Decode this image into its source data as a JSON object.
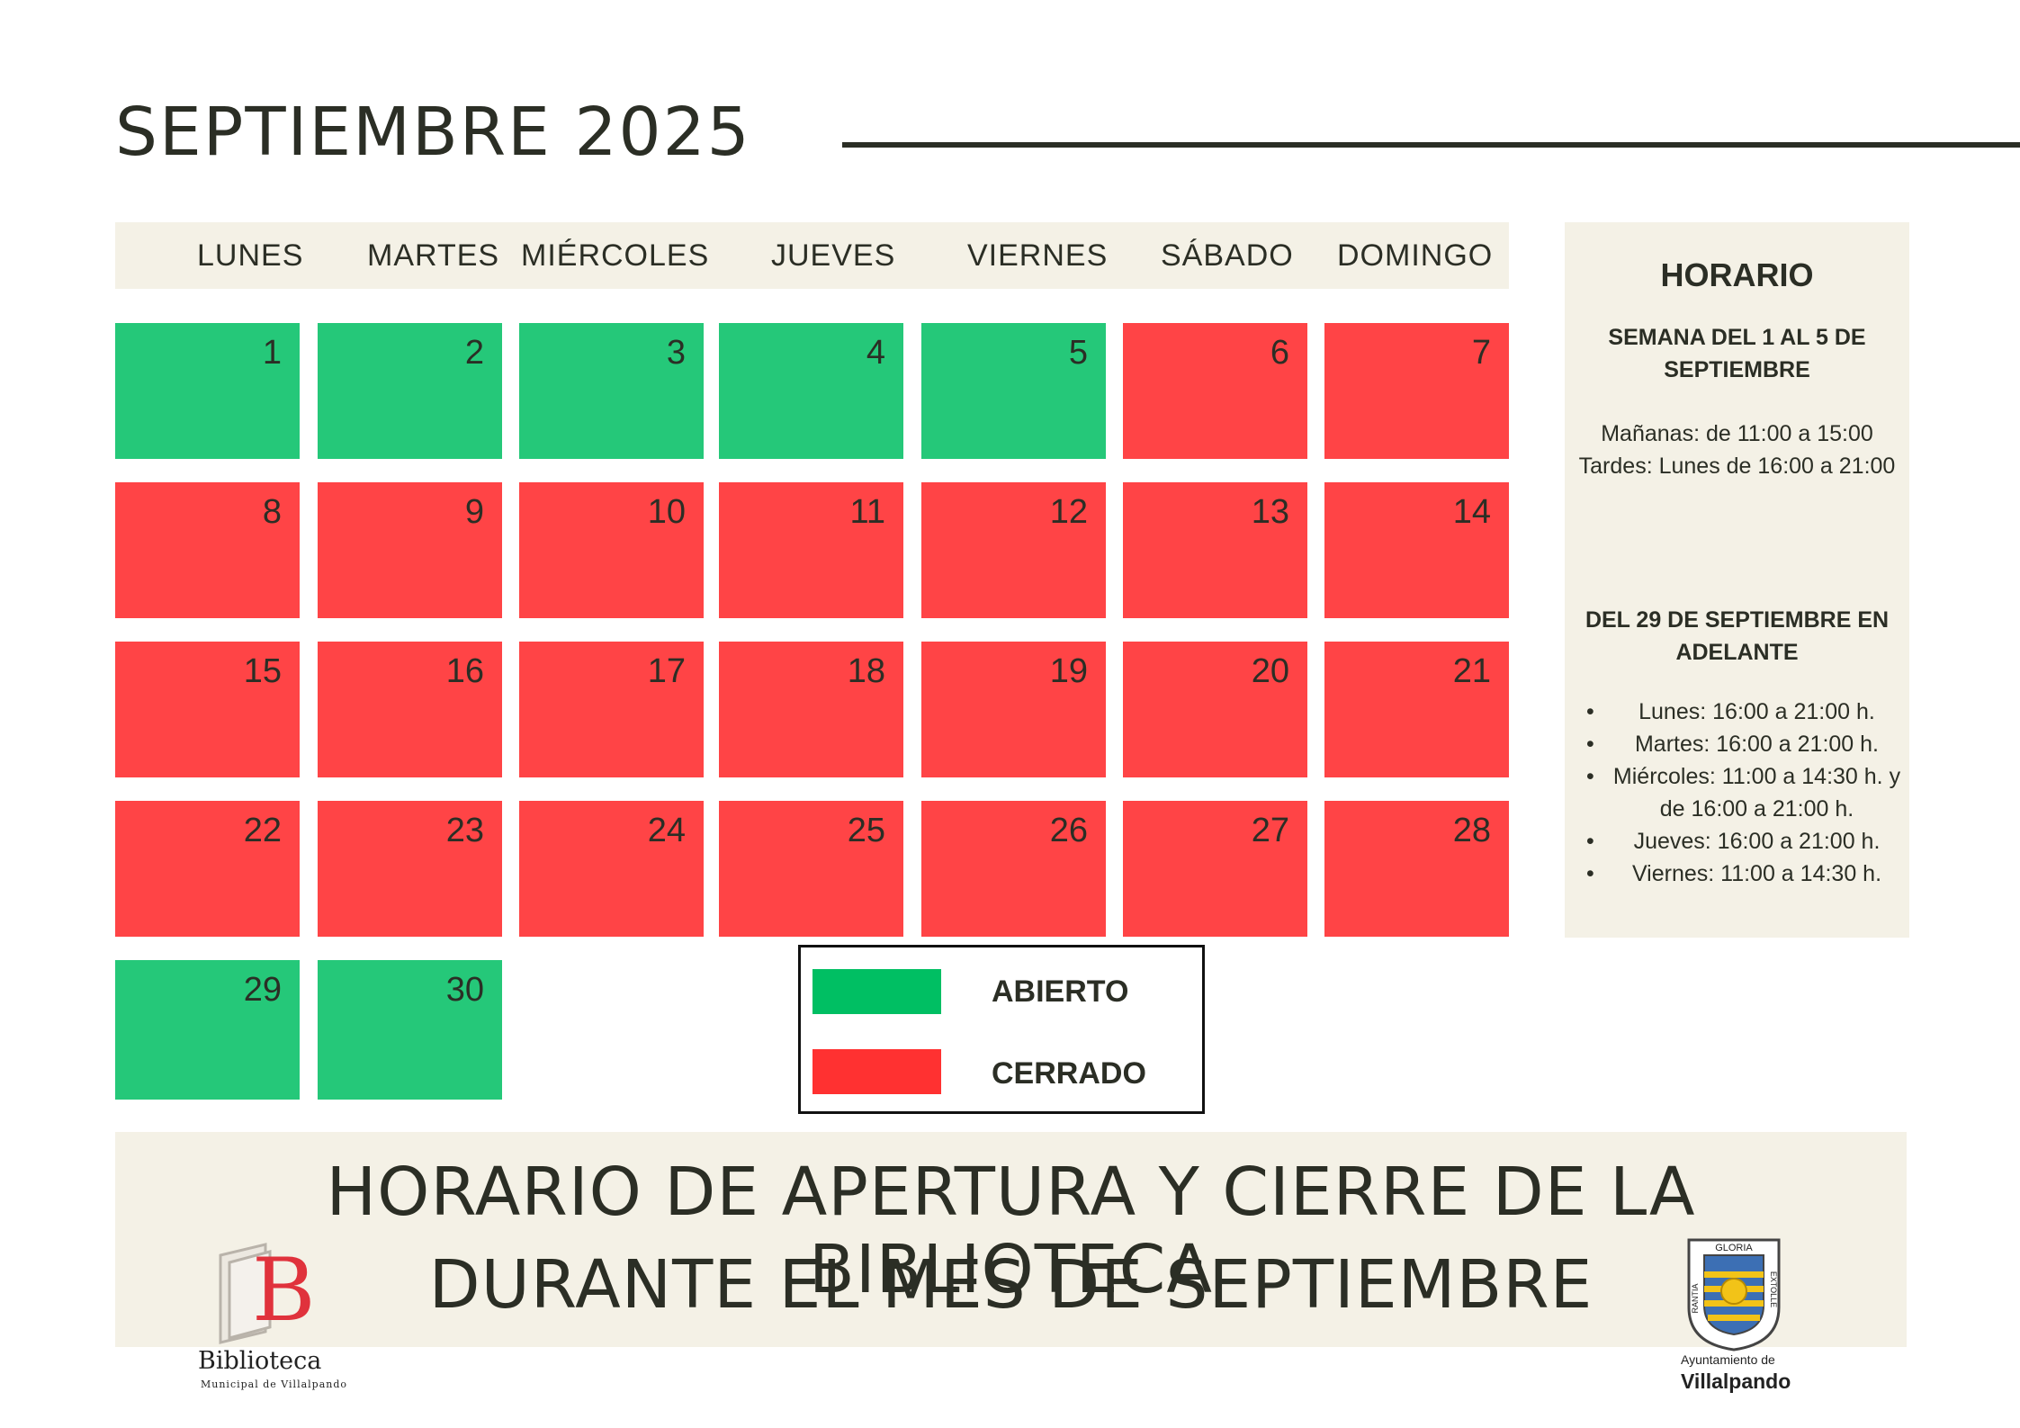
{
  "title": "SEPTIEMBRE 2025",
  "weekdays": [
    "LUNES",
    "MARTES",
    "MIÉRCOLES",
    "JUEVES",
    "VIERNES",
    "SÁBADO",
    "DOMINGO"
  ],
  "days": [
    {
      "n": "1",
      "status": "open"
    },
    {
      "n": "2",
      "status": "open"
    },
    {
      "n": "3",
      "status": "open"
    },
    {
      "n": "4",
      "status": "open"
    },
    {
      "n": "5",
      "status": "open"
    },
    {
      "n": "6",
      "status": "closed"
    },
    {
      "n": "7",
      "status": "closed"
    },
    {
      "n": "8",
      "status": "closed"
    },
    {
      "n": "9",
      "status": "closed"
    },
    {
      "n": "10",
      "status": "closed"
    },
    {
      "n": "11",
      "status": "closed"
    },
    {
      "n": "12",
      "status": "closed"
    },
    {
      "n": "13",
      "status": "closed"
    },
    {
      "n": "14",
      "status": "closed"
    },
    {
      "n": "15",
      "status": "closed"
    },
    {
      "n": "16",
      "status": "closed"
    },
    {
      "n": "17",
      "status": "closed"
    },
    {
      "n": "18",
      "status": "closed"
    },
    {
      "n": "19",
      "status": "closed"
    },
    {
      "n": "20",
      "status": "closed"
    },
    {
      "n": "21",
      "status": "closed"
    },
    {
      "n": "22",
      "status": "closed"
    },
    {
      "n": "23",
      "status": "closed"
    },
    {
      "n": "24",
      "status": "closed"
    },
    {
      "n": "25",
      "status": "closed"
    },
    {
      "n": "26",
      "status": "closed"
    },
    {
      "n": "27",
      "status": "closed"
    },
    {
      "n": "28",
      "status": "closed"
    },
    {
      "n": "29",
      "status": "open"
    },
    {
      "n": "30",
      "status": "open"
    }
  ],
  "legend": {
    "open_label": "ABIERTO",
    "closed_label": "CERRADO",
    "open_color": "#00bf63",
    "closed_color": "#ff3131"
  },
  "colors": {
    "open_cell": "#25c879",
    "closed_cell": "#ff4446",
    "panel_bg": "#f4f1e6",
    "text": "#2b2e25"
  },
  "schedule": {
    "heading": "HORARIO",
    "week1_title_l1": "SEMANA DEL 1 AL 5 DE",
    "week1_title_l2": "SEPTIEMBRE",
    "week1_morning": "Mañanas: de 11:00 a 15:00",
    "week1_afternoon": "Tardes: Lunes de 16:00 a 21:00",
    "from29_title_l1": "DEL 29 DE SEPTIEMBRE EN",
    "from29_title_l2": "ADELANTE",
    "items": [
      "Lunes: 16:00 a 21:00 h.",
      "Martes: 16:00 a 21:00 h.",
      "Miércoles: 11:00 a 14:30 h. y de 16:00 a 21:00 h.",
      "Jueves: 16:00 a 21:00 h.",
      "Viernes: 11:00 a 14:30 h."
    ]
  },
  "banner": {
    "line1": "HORARIO DE APERTURA Y CIERRE DE LA BIBLIOTECA",
    "line2": "DURANTE EL MES DE SEPTIEMBRE"
  },
  "library_logo": {
    "name": "Biblioteca",
    "subtitle": "Municipal de Villalpando",
    "letter": "B"
  },
  "town_logo": {
    "subtitle": "Ayuntamiento de",
    "name": "Villalpando",
    "crest_top": "GLORIA",
    "crest_left": "RANTIA",
    "crest_right": "EXTOLLE"
  }
}
